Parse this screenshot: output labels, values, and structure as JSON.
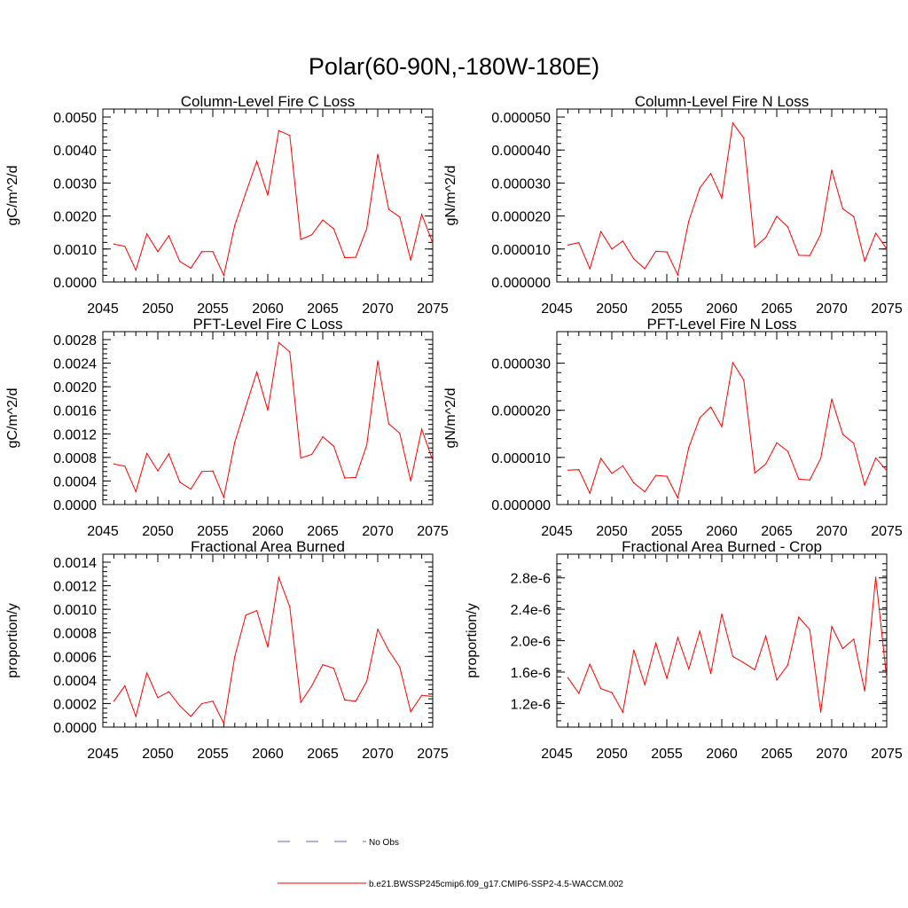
{
  "figure_title": "Polar(60-90N,-180W-180E)",
  "colors": {
    "series": "#ff0000",
    "obs": "#5b6bb5",
    "axis": "#000000"
  },
  "legend": {
    "obs_label": "No Obs",
    "model_label": "b.e21.BWSSP245cmip6.f09_g17.CMIP6-SSP2-4.5-WACCM.002"
  },
  "chart_data": [
    {
      "type": "line",
      "title": "Column-Level Fire C Loss",
      "xlabel": "",
      "ylabel": "gC/m^2/d",
      "xlim": [
        2045,
        2075
      ],
      "ylim": [
        0,
        0.005
      ],
      "xticks": [
        2045,
        2050,
        2055,
        2060,
        2065,
        2070,
        2075
      ],
      "xtick_labels": [
        "2045",
        "2050",
        "2055",
        "2060",
        "2065",
        "2070",
        "2075"
      ],
      "yticks": [
        0,
        0.001,
        0.002,
        0.003,
        0.004,
        0.005
      ],
      "ytick_labels": [
        "0.0000",
        "0.0010",
        "0.0020",
        "0.0030",
        "0.0040",
        "0.0050"
      ],
      "series": [
        {
          "name": "b.e21.BWSSP245cmip6.f09_g17.CMIP6-SSP2-4.5-WACCM.002",
          "x": [
            2046,
            2047,
            2048,
            2049,
            2050,
            2051,
            2052,
            2053,
            2054,
            2055,
            2056,
            2057,
            2058,
            2059,
            2060,
            2061,
            2062,
            2063,
            2064,
            2065,
            2066,
            2067,
            2068,
            2069,
            2070,
            2071,
            2072,
            2073,
            2074,
            2075
          ],
          "values": [
            0.00115,
            0.00108,
            0.00036,
            0.00146,
            0.00092,
            0.0014,
            0.00062,
            0.00042,
            0.00092,
            0.00092,
            0.0002,
            0.00172,
            0.0027,
            0.00366,
            0.00263,
            0.00459,
            0.00444,
            0.00129,
            0.00143,
            0.00188,
            0.00161,
            0.00074,
            0.00075,
            0.00162,
            0.00387,
            0.0022,
            0.00197,
            0.00066,
            0.00205,
            0.00118
          ]
        }
      ]
    },
    {
      "type": "line",
      "title": "Column-Level Fire N Loss",
      "xlabel": "",
      "ylabel": "gN/m^2/d",
      "xlim": [
        2045,
        2075
      ],
      "ylim": [
        0,
        5e-05
      ],
      "xticks": [
        2045,
        2050,
        2055,
        2060,
        2065,
        2070,
        2075
      ],
      "xtick_labels": [
        "2045",
        "2050",
        "2055",
        "2060",
        "2065",
        "2070",
        "2075"
      ],
      "yticks": [
        0,
        1e-05,
        2e-05,
        3e-05,
        4e-05,
        5e-05
      ],
      "ytick_labels": [
        "0.000000",
        "0.000010",
        "0.000020",
        "0.000030",
        "0.000040",
        "0.000050"
      ],
      "series": [
        {
          "name": "b.e21.BWSSP245cmip6.f09_g17.CMIP6-SSP2-4.5-WACCM.002",
          "x": [
            2046,
            2047,
            2048,
            2049,
            2050,
            2051,
            2052,
            2053,
            2054,
            2055,
            2056,
            2057,
            2058,
            2059,
            2060,
            2061,
            2062,
            2063,
            2064,
            2065,
            2066,
            2067,
            2068,
            2069,
            2070,
            2071,
            2072,
            2073,
            2074,
            2075
          ],
          "values": [
            1.12e-05,
            1.19e-05,
            4e-06,
            1.53e-05,
            1e-05,
            1.24e-05,
            7e-06,
            4e-06,
            9.3e-06,
            9.1e-06,
            2.1e-06,
            1.85e-05,
            2.85e-05,
            3.29e-05,
            2.54e-05,
            4.82e-05,
            4.36e-05,
            1.05e-05,
            1.35e-05,
            1.99e-05,
            1.67e-05,
            8.1e-06,
            8e-06,
            1.45e-05,
            3.39e-05,
            2.22e-05,
            1.98e-05,
            6.3e-06,
            1.48e-05,
            1e-05
          ]
        }
      ]
    },
    {
      "type": "line",
      "title": "PFT-Level Fire C Loss",
      "xlabel": "",
      "ylabel": "gC/m^2/d",
      "xlim": [
        2045,
        2075
      ],
      "ylim": [
        0,
        0.0028
      ],
      "xticks": [
        2045,
        2050,
        2055,
        2060,
        2065,
        2070,
        2075
      ],
      "xtick_labels": [
        "2045",
        "2050",
        "2055",
        "2060",
        "2065",
        "2070",
        "2075"
      ],
      "yticks": [
        0,
        0.0004,
        0.0008,
        0.0012,
        0.0016,
        0.002,
        0.0024,
        0.0028
      ],
      "ytick_labels": [
        "0.0000",
        "0.0004",
        "0.0008",
        "0.0012",
        "0.0016",
        "0.0020",
        "0.0024",
        "0.0028"
      ],
      "series": [
        {
          "name": "b.e21.BWSSP245cmip6.f09_g17.CMIP6-SSP2-4.5-WACCM.002",
          "x": [
            2046,
            2047,
            2048,
            2049,
            2050,
            2051,
            2052,
            2053,
            2054,
            2055,
            2056,
            2057,
            2058,
            2059,
            2060,
            2061,
            2062,
            2063,
            2064,
            2065,
            2066,
            2067,
            2068,
            2069,
            2070,
            2071,
            2072,
            2073,
            2074,
            2075
          ],
          "values": [
            0.00069,
            0.00065,
            0.00022,
            0.00087,
            0.00057,
            0.00086,
            0.00038,
            0.00026,
            0.00056,
            0.00057,
            0.00012,
            0.00106,
            0.00166,
            0.00225,
            0.0016,
            0.00275,
            0.00259,
            0.00079,
            0.00085,
            0.00115,
            0.00099,
            0.00045,
            0.00046,
            0.00101,
            0.00244,
            0.00137,
            0.00121,
            0.0004,
            0.00128,
            0.00075
          ]
        }
      ]
    },
    {
      "type": "line",
      "title": "PFT-Level Fire N Loss",
      "xlabel": "",
      "ylabel": "gN/m^2/d",
      "xlim": [
        2045,
        2075
      ],
      "ylim": [
        0,
        3.5e-05
      ],
      "xticks": [
        2045,
        2050,
        2055,
        2060,
        2065,
        2070,
        2075
      ],
      "xtick_labels": [
        "2045",
        "2050",
        "2055",
        "2060",
        "2065",
        "2070",
        "2075"
      ],
      "yticks": [
        0,
        1e-05,
        2e-05,
        3e-05
      ],
      "ytick_labels": [
        "0.000000",
        "0.000010",
        "0.000020",
        "0.000030"
      ],
      "series": [
        {
          "name": "b.e21.BWSSP245cmip6.f09_g17.CMIP6-SSP2-4.5-WACCM.002",
          "x": [
            2046,
            2047,
            2048,
            2049,
            2050,
            2051,
            2052,
            2053,
            2054,
            2055,
            2056,
            2057,
            2058,
            2059,
            2060,
            2061,
            2062,
            2063,
            2064,
            2065,
            2066,
            2067,
            2068,
            2069,
            2070,
            2071,
            2072,
            2073,
            2074,
            2075
          ],
          "values": [
            7.3e-06,
            7.4e-06,
            2.4e-06,
            9.8e-06,
            6.6e-06,
            8.2e-06,
            4.6e-06,
            2.7e-06,
            6.2e-06,
            6e-06,
            1.4e-06,
            1.21e-05,
            1.84e-05,
            2.07e-05,
            1.65e-05,
            3.01e-05,
            2.64e-05,
            6.7e-06,
            8.6e-06,
            1.31e-05,
            1.13e-05,
            5.4e-06,
            5.2e-06,
            9.8e-06,
            2.24e-05,
            1.49e-05,
            1.3e-05,
            4.1e-06,
            9.9e-06,
            7.2e-06
          ]
        }
      ]
    },
    {
      "type": "line",
      "title": "Fractional Area Burned",
      "xlabel": "",
      "ylabel": "proportion/y",
      "xlim": [
        2045,
        2075
      ],
      "ylim": [
        0,
        0.0014
      ],
      "xticks": [
        2045,
        2050,
        2055,
        2060,
        2065,
        2070,
        2075
      ],
      "xtick_labels": [
        "2045",
        "2050",
        "2055",
        "2060",
        "2065",
        "2070",
        "2075"
      ],
      "yticks": [
        0,
        0.0002,
        0.0004,
        0.0006,
        0.0008,
        0.001,
        0.0012,
        0.0014
      ],
      "ytick_labels": [
        "0.0000",
        "0.0002",
        "0.0004",
        "0.0006",
        "0.0008",
        "0.0010",
        "0.0012",
        "0.0014"
      ],
      "series": [
        {
          "name": "b.e21.BWSSP245cmip6.f09_g17.CMIP6-SSP2-4.5-WACCM.002",
          "x": [
            2046,
            2047,
            2048,
            2049,
            2050,
            2051,
            2052,
            2053,
            2054,
            2055,
            2056,
            2057,
            2058,
            2059,
            2060,
            2061,
            2062,
            2063,
            2064,
            2065,
            2066,
            2067,
            2068,
            2069,
            2070,
            2071,
            2072,
            2073,
            2074,
            2075
          ],
          "values": [
            0.00022,
            0.00035,
            9e-05,
            0.00046,
            0.00025,
            0.0003,
            0.00018,
            9e-05,
            0.0002,
            0.00022,
            3e-05,
            0.0006,
            0.00095,
            0.00099,
            0.00068,
            0.00127,
            0.00102,
            0.00021,
            0.00035,
            0.00053,
            0.0005,
            0.00023,
            0.00022,
            0.00039,
            0.00083,
            0.00065,
            0.00051,
            0.00013,
            0.00027,
            0.00026
          ]
        }
      ]
    },
    {
      "type": "line",
      "title": "Fractional Area Burned - Crop",
      "xlabel": "",
      "ylabel": "proportion/y",
      "xlim": [
        2045,
        2075
      ],
      "ylim": [
        9e-07,
        3e-06
      ],
      "xticks": [
        2045,
        2050,
        2055,
        2060,
        2065,
        2070,
        2075
      ],
      "xtick_labels": [
        "2045",
        "2050",
        "2055",
        "2060",
        "2065",
        "2070",
        "2075"
      ],
      "yticks": [
        1.2e-06,
        1.6e-06,
        2e-06,
        2.4e-06,
        2.8e-06
      ],
      "ytick_labels": [
        "1.2e-6",
        "1.6e-6",
        "2.0e-6",
        "2.4e-6",
        "2.8e-6"
      ],
      "series": [
        {
          "name": "b.e21.BWSSP245cmip6.f09_g17.CMIP6-SSP2-4.5-WACCM.002",
          "x": [
            2046,
            2047,
            2048,
            2049,
            2050,
            2051,
            2052,
            2053,
            2054,
            2055,
            2056,
            2057,
            2058,
            2059,
            2060,
            2061,
            2062,
            2063,
            2064,
            2065,
            2066,
            2067,
            2068,
            2069,
            2070,
            2071,
            2072,
            2073,
            2074,
            2075
          ],
          "values": [
            1.53e-06,
            1.33e-06,
            1.7e-06,
            1.39e-06,
            1.34e-06,
            1.09e-06,
            1.88e-06,
            1.44e-06,
            1.97e-06,
            1.52e-06,
            2.04e-06,
            1.64e-06,
            2.12e-06,
            1.58e-06,
            2.34e-06,
            1.8e-06,
            1.72e-06,
            1.63e-06,
            2.06e-06,
            1.5e-06,
            1.69e-06,
            2.3e-06,
            2.14e-06,
            1.09e-06,
            2.18e-06,
            1.9e-06,
            2.02e-06,
            1.36e-06,
            2.81e-06,
            1.52e-06
          ]
        }
      ]
    }
  ]
}
